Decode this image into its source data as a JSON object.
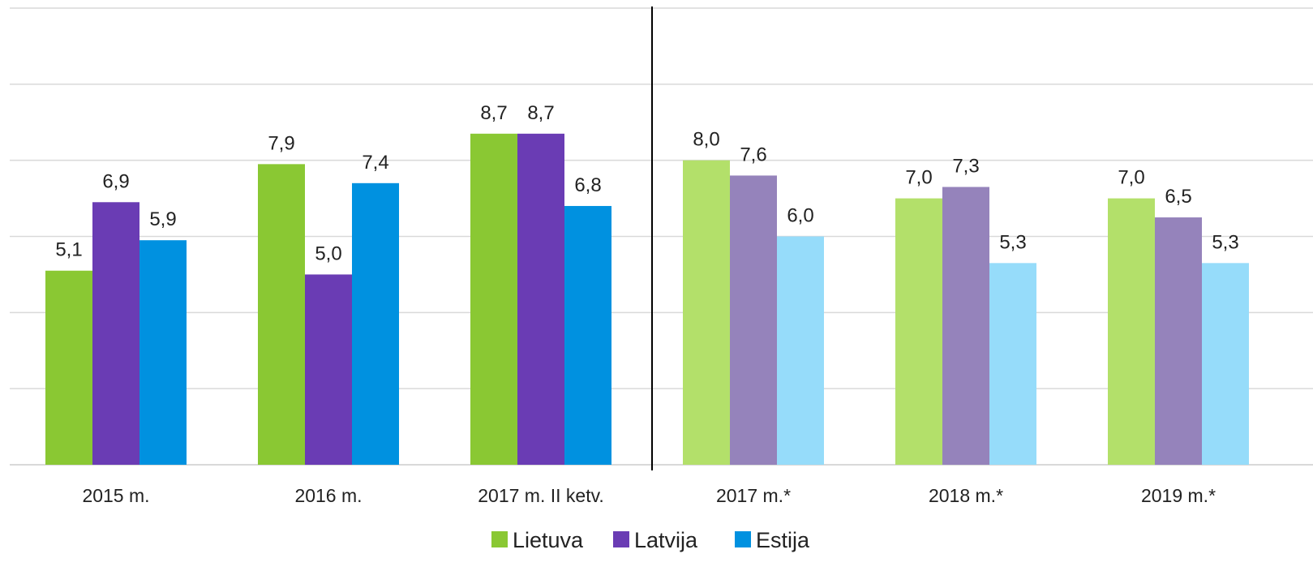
{
  "chart_data": {
    "type": "bar",
    "categories": [
      "2015 m.",
      "2016 m.",
      "2017 m. II ketv.",
      "2017 m.*",
      "2018 m.*",
      "2019 m.*"
    ],
    "series": [
      {
        "name": "Lietuva",
        "values": [
          5.1,
          7.9,
          8.7,
          8.0,
          7.0,
          7.0
        ],
        "value_labels": [
          "5,1",
          "7,9",
          "8,7",
          "8,0",
          "7,0",
          "7,0"
        ]
      },
      {
        "name": "Latvija",
        "values": [
          6.9,
          5.0,
          8.7,
          7.6,
          7.3,
          6.5
        ],
        "value_labels": [
          "6,9",
          "5,0",
          "8,7",
          "7,6",
          "7,3",
          "6,5"
        ]
      },
      {
        "name": "Estija",
        "values": [
          5.9,
          7.4,
          6.8,
          6.0,
          5.3,
          5.3
        ],
        "value_labels": [
          "5,9",
          "7,4",
          "6,8",
          "6,0",
          "5,3",
          "5,3"
        ]
      }
    ],
    "ylim": [
      0,
      12
    ],
    "grid": true,
    "legend_position": "bottom",
    "forecast_categories": [
      "2017 m.*",
      "2018 m.*",
      "2019 m.*"
    ],
    "colors": {
      "actual": [
        "#8ac833",
        "#6a3cb4",
        "#0091e0"
      ],
      "forecast": [
        "#b3e06a",
        "#9583bb",
        "#96dcfa"
      ],
      "grid": "#d9d9d9",
      "divider": "#000000"
    }
  }
}
